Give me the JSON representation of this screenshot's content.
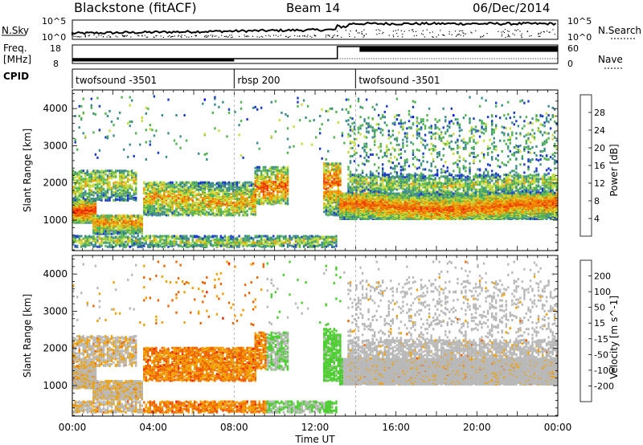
{
  "header": {
    "title": "Blackstone (fitACF)",
    "beam": "Beam 14",
    "date": "06/Dec/2014"
  },
  "side_labels": {
    "nsky": "N.Sky",
    "freq_line1": "Freq.",
    "freq_line2": "[MHz]",
    "cpid": "CPID",
    "nsearch": "N.Search",
    "nave": "Nave"
  },
  "noise_axis": {
    "top": "10^5",
    "bottom": "10^0"
  },
  "freq_axis": {
    "left_top": "18",
    "left_bottom": "8",
    "right_top": "60",
    "right_bottom": "0"
  },
  "cpid_segments": [
    {
      "label": "twofsound -3501",
      "start_hour": 0,
      "end_hour": 8
    },
    {
      "label": "rbsp 200",
      "start_hour": 8,
      "end_hour": 14
    },
    {
      "label": "twofsound -3501",
      "start_hour": 14,
      "end_hour": 24
    }
  ],
  "colors": {
    "power_scale": [
      "#0000ff",
      "#1a3cc8",
      "#3c8c8c",
      "#50b450",
      "#c8dc3c",
      "#f0a000",
      "#f06400",
      "#f03000",
      "#e60000"
    ],
    "velocity_scale": [
      "#2030c0",
      "#2850e0",
      "#1e7a3c",
      "#4ccd30",
      "#b8b8b8",
      "#b8b8b8",
      "#f0a000",
      "#f06400",
      "#f02000",
      "#e60000"
    ]
  },
  "chart_data": [
    {
      "type": "heatmap",
      "name": "power",
      "xlabel": "",
      "ylabel": "Slant Range [km]",
      "x_range_hours": [
        0,
        24
      ],
      "ylim": [
        180,
        4500
      ],
      "yticks": [
        "1000",
        "2000",
        "3000",
        "4000"
      ],
      "colorbar": {
        "label": "Power [dB]",
        "ticks": [
          "4",
          "8",
          "12",
          "16",
          "20",
          "24",
          "28"
        ],
        "range": [
          0,
          30
        ]
      }
    },
    {
      "type": "heatmap",
      "name": "velocity",
      "xlabel": "Time UT",
      "ylabel": "Slant Range [km]",
      "x_range_hours": [
        0,
        24
      ],
      "ylim": [
        180,
        4500
      ],
      "yticks": [
        "1000",
        "2000",
        "3000",
        "4000"
      ],
      "xticks": [
        "00:00",
        "04:00",
        "08:00",
        "12:00",
        "16:00",
        "20:00",
        "00:00"
      ],
      "colorbar": {
        "label": "Velocity [m s^-1]",
        "ticks": [
          "200",
          "100",
          "50",
          "15",
          "-15",
          "-50",
          "-100",
          "-200"
        ]
      }
    }
  ]
}
